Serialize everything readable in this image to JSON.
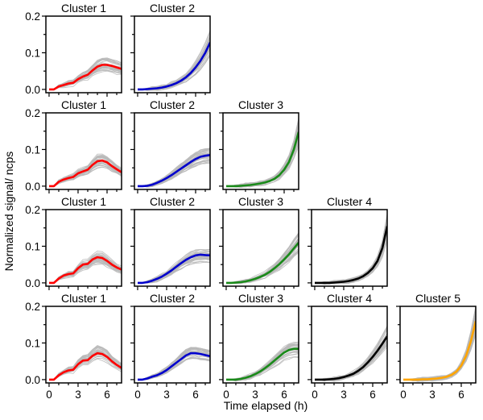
{
  "chart_data": {
    "type": "line",
    "ylabel": "Normalized signal/ ncps",
    "xlabel": "Time elapsed (h)",
    "xlim": [
      -0.33,
      7.5
    ],
    "ylim": [
      -0.009,
      0.2
    ],
    "xticks": [
      0,
      3,
      6
    ],
    "xtick_labels": [
      "0",
      "3",
      "6"
    ],
    "yticks": [
      0.0,
      0.1,
      0.2
    ],
    "ytick_labels": [
      "0.0",
      "0.1",
      "0.2"
    ],
    "grid": false,
    "x": [
      0,
      0.5,
      1,
      1.5,
      2,
      2.5,
      3,
      3.5,
      4,
      4.5,
      5,
      5.5,
      6,
      6.5,
      7,
      7.5
    ],
    "individual_trace_color": "#b8b8b8",
    "rows": [
      {
        "panels": [
          {
            "title": "Cluster 1",
            "color": "#ff0000",
            "mean": [
              0,
              0,
              0.008,
              0.012,
              0.016,
              0.018,
              0.028,
              0.035,
              0.04,
              0.052,
              0.062,
              0.067,
              0.067,
              0.064,
              0.06,
              0.056
            ]
          },
          {
            "title": "Cluster 2",
            "color": "#0000cc",
            "mean": [
              0,
              0,
              0.001,
              0.002,
              0.003,
              0.005,
              0.008,
              0.012,
              0.017,
              0.024,
              0.033,
              0.045,
              0.06,
              0.078,
              0.1,
              0.128
            ]
          }
        ]
      },
      {
        "panels": [
          {
            "title": "Cluster 1",
            "color": "#ff0000",
            "mean": [
              0,
              0,
              0.012,
              0.018,
              0.022,
              0.025,
              0.035,
              0.04,
              0.045,
              0.058,
              0.068,
              0.07,
              0.065,
              0.055,
              0.046,
              0.038
            ]
          },
          {
            "title": "Cluster 2",
            "color": "#0000cc",
            "mean": [
              0,
              0,
              0.001,
              0.004,
              0.009,
              0.015,
              0.022,
              0.03,
              0.039,
              0.048,
              0.057,
              0.066,
              0.074,
              0.08,
              0.083,
              0.085
            ]
          },
          {
            "title": "Cluster 3",
            "color": "#1a8a1a",
            "mean": [
              0,
              0,
              0,
              0.001,
              0.002,
              0.003,
              0.005,
              0.007,
              0.01,
              0.014,
              0.02,
              0.03,
              0.045,
              0.066,
              0.1,
              0.148
            ]
          }
        ]
      },
      {
        "panels": [
          {
            "title": "Cluster 1",
            "color": "#ff0000",
            "mean": [
              0,
              0,
              0.012,
              0.02,
              0.024,
              0.026,
              0.04,
              0.05,
              0.052,
              0.064,
              0.07,
              0.068,
              0.06,
              0.05,
              0.042,
              0.036
            ]
          },
          {
            "title": "Cluster 2",
            "color": "#0000cc",
            "mean": [
              0,
              0,
              0.002,
              0.006,
              0.011,
              0.017,
              0.025,
              0.034,
              0.044,
              0.054,
              0.063,
              0.07,
              0.075,
              0.077,
              0.076,
              0.075
            ]
          },
          {
            "title": "Cluster 3",
            "color": "#1a8a1a",
            "mean": [
              0,
              0,
              0.001,
              0.002,
              0.004,
              0.007,
              0.011,
              0.016,
              0.022,
              0.03,
              0.04,
              0.051,
              0.064,
              0.078,
              0.094,
              0.11
            ]
          },
          {
            "title": "Cluster 4",
            "color": "#000000",
            "mean": [
              0,
              0,
              0,
              0,
              0.001,
              0.002,
              0.003,
              0.005,
              0.008,
              0.012,
              0.018,
              0.027,
              0.04,
              0.06,
              0.095,
              0.155
            ]
          }
        ]
      },
      {
        "panels": [
          {
            "title": "Cluster 1",
            "color": "#ff0000",
            "mean": [
              0,
              0,
              0.012,
              0.02,
              0.025,
              0.027,
              0.042,
              0.052,
              0.053,
              0.065,
              0.072,
              0.07,
              0.062,
              0.05,
              0.04,
              0.032
            ]
          },
          {
            "title": "Cluster 2",
            "color": "#0000cc",
            "mean": [
              0,
              0,
              0.003,
              0.008,
              0.012,
              0.018,
              0.026,
              0.036,
              0.046,
              0.056,
              0.066,
              0.072,
              0.072,
              0.07,
              0.067,
              0.064
            ]
          },
          {
            "title": "Cluster 3",
            "color": "#1a8a1a",
            "mean": [
              0,
              0,
              0,
              0.002,
              0.005,
              0.009,
              0.015,
              0.022,
              0.031,
              0.041,
              0.052,
              0.063,
              0.074,
              0.081,
              0.084,
              0.084
            ]
          },
          {
            "title": "Cluster 4",
            "color": "#000000",
            "mean": [
              0,
              0,
              0,
              0.001,
              0.002,
              0.004,
              0.007,
              0.011,
              0.016,
              0.024,
              0.034,
              0.047,
              0.062,
              0.079,
              0.098,
              0.118
            ]
          },
          {
            "title": "Cluster 5",
            "color": "#ffa500",
            "mean": [
              0,
              0,
              0,
              0,
              0.001,
              0.001,
              0.002,
              0.003,
              0.005,
              0.008,
              0.013,
              0.022,
              0.038,
              0.065,
              0.105,
              0.16
            ]
          }
        ]
      }
    ]
  }
}
